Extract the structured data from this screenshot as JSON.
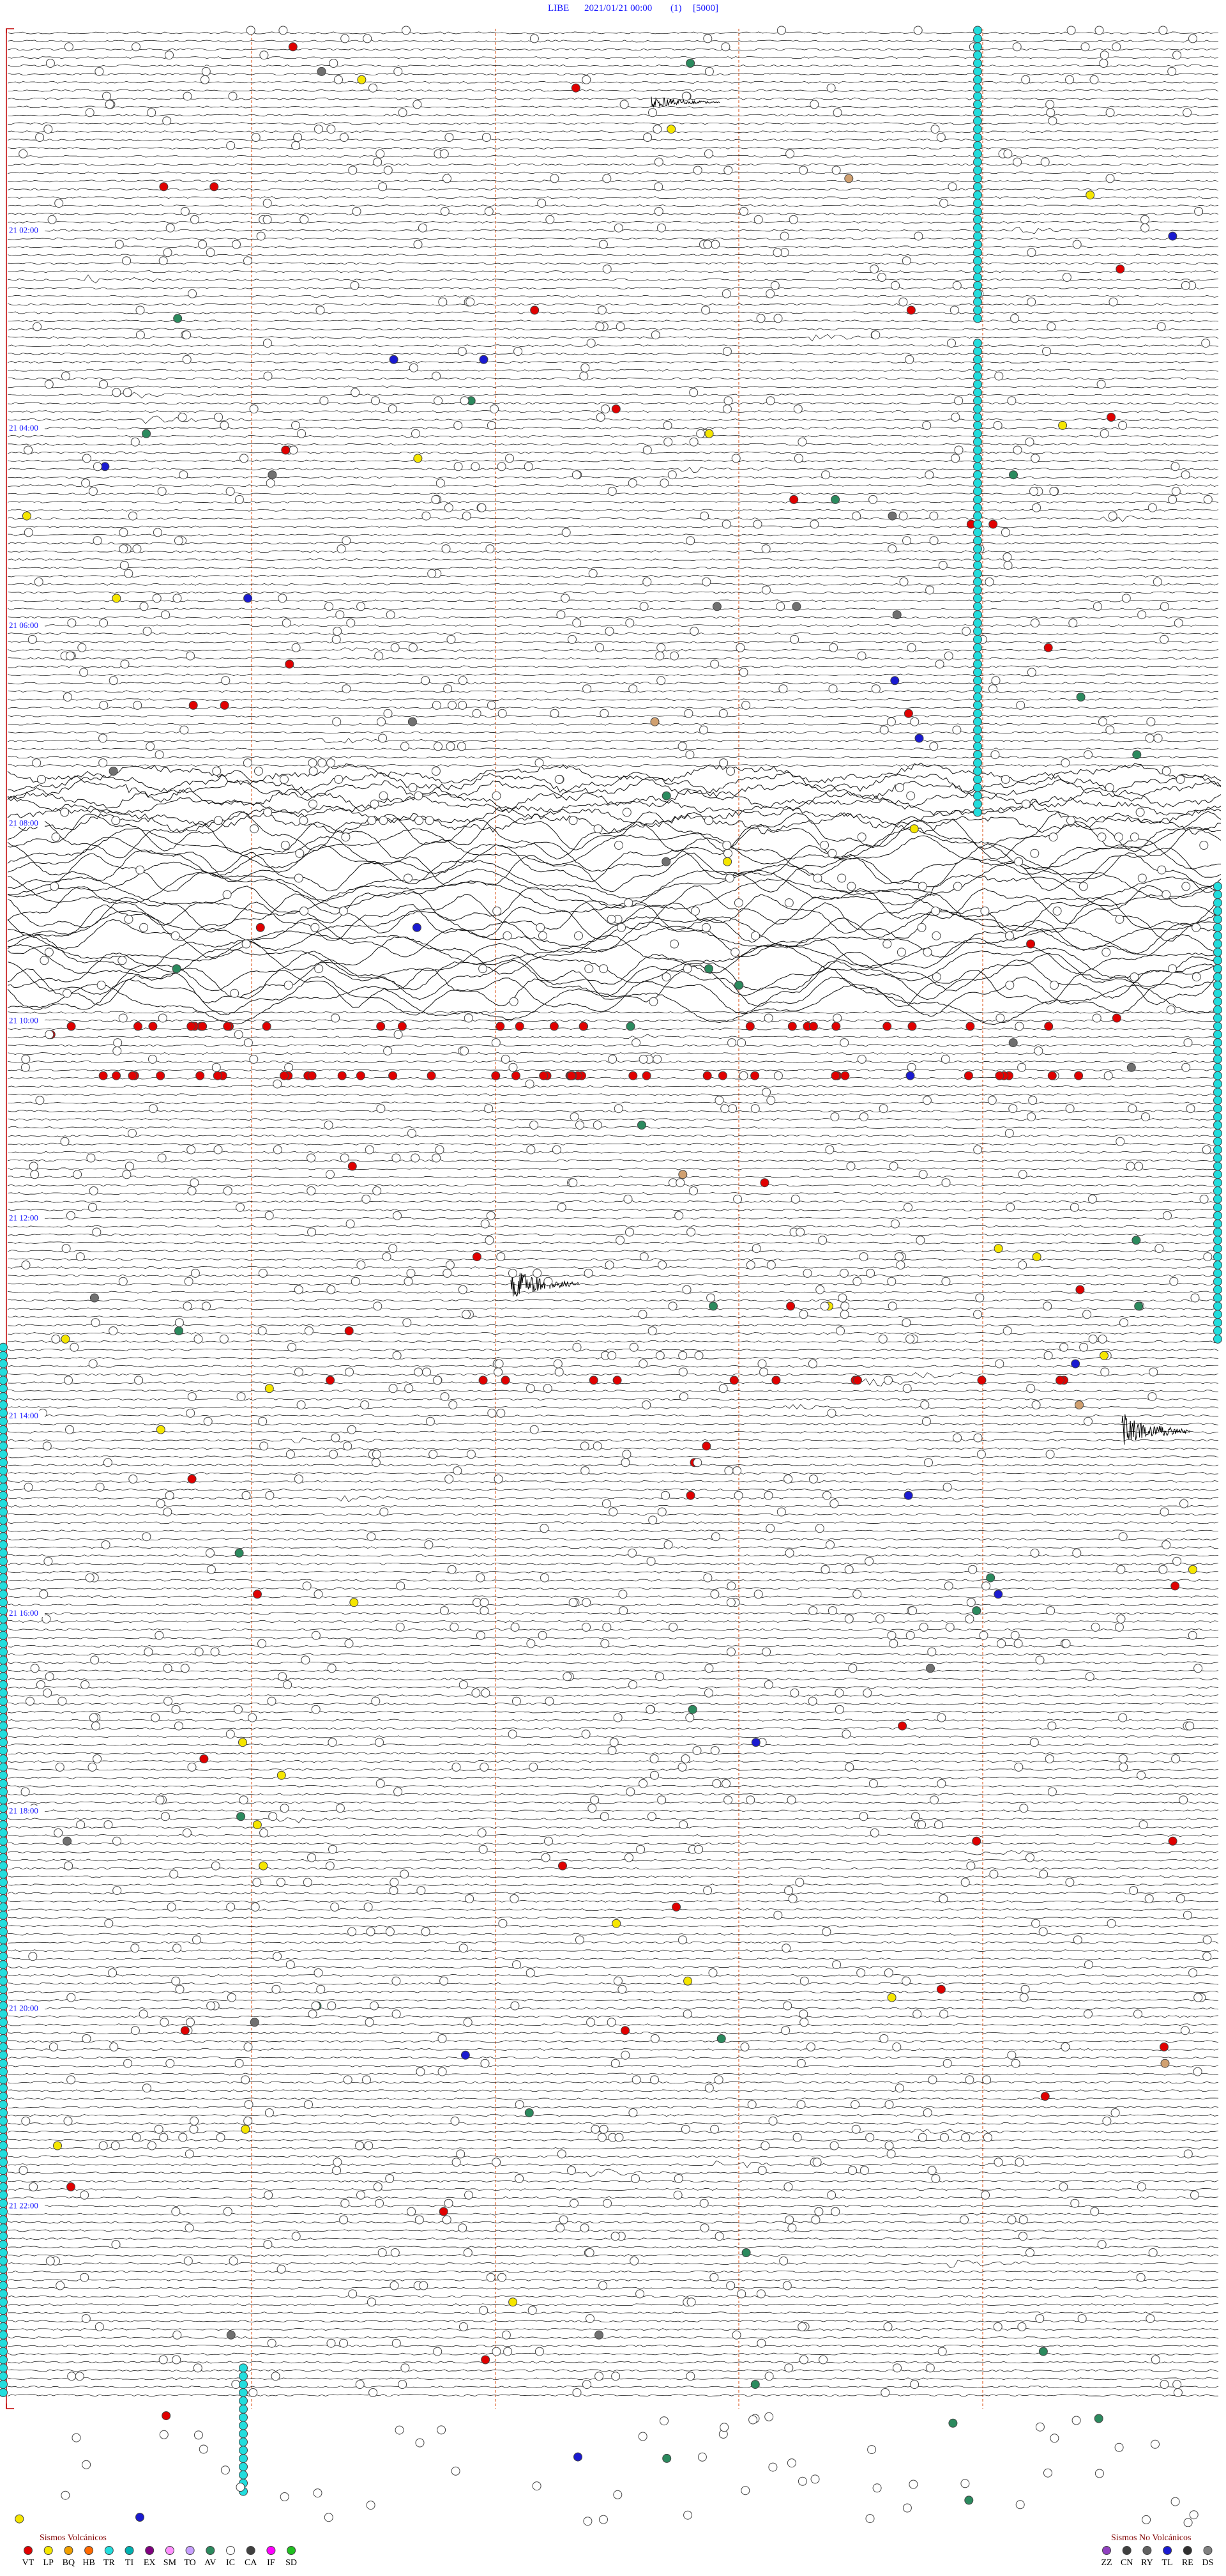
{
  "header": {
    "station": "LIBE",
    "datetime": "2021/01/21 00:00",
    "channel": "(1)",
    "scale": "[5000]"
  },
  "time_labels": [
    "21 02:00",
    "21 04:00",
    "21 06:00",
    "21 08:00",
    "21 10:00",
    "21 12:00",
    "21 14:00",
    "21 16:00",
    "21 18:00",
    "21 20:00",
    "21 22:00"
  ],
  "legend": {
    "volcanic": {
      "title": "Sismos Volcánicos",
      "codes": [
        "VT",
        "LP",
        "BQ",
        "HB",
        "TR",
        "TI",
        "EX",
        "SM",
        "TO",
        "AV",
        "IC",
        "CA",
        "IF",
        "SD"
      ]
    },
    "non_volcanic": {
      "title": "Sismos No Volcánicos",
      "codes": [
        "ZZ",
        "CN",
        "RY",
        "TL",
        "RE",
        "DS"
      ]
    }
  }
}
